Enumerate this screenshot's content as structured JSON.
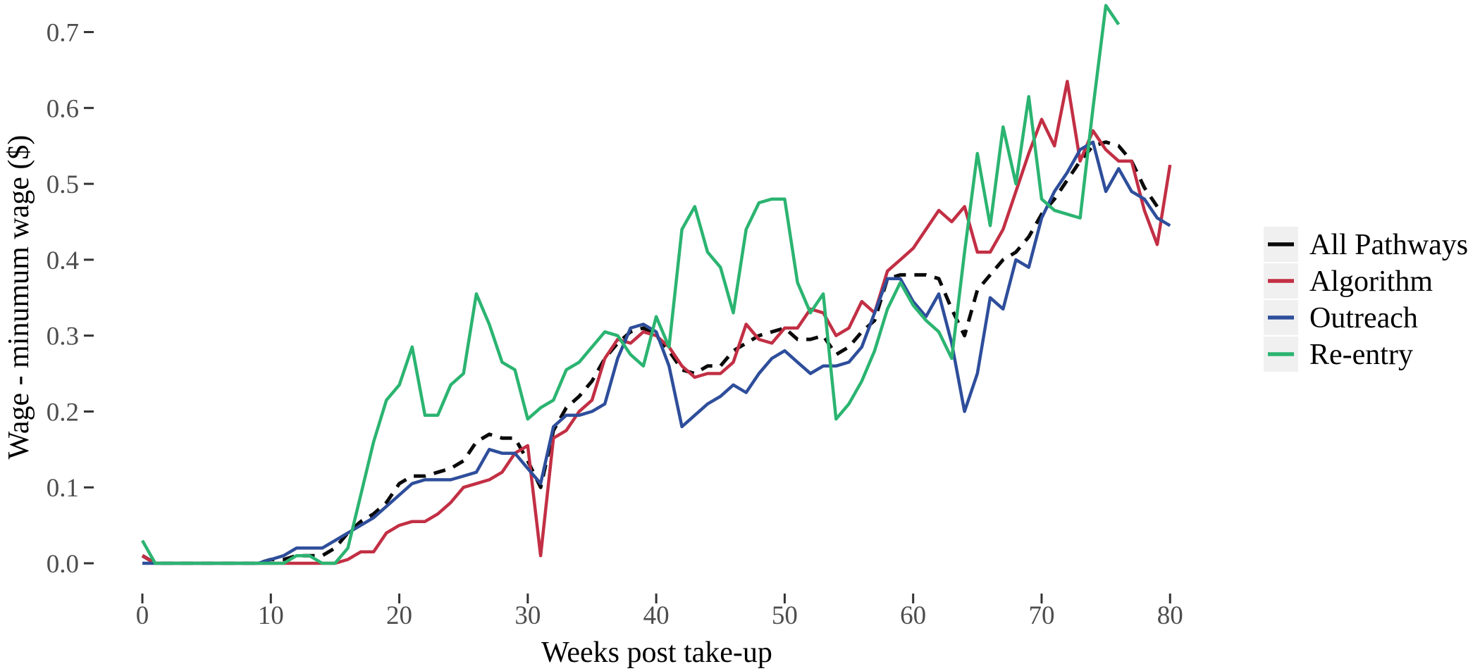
{
  "figure": {
    "background": "#FFFFFF",
    "tick_color": "#333333",
    "tick_label_color": "#4D4D4D",
    "axis_title_color": "#000000",
    "legend_key_background": "#F0F0F0",
    "legend_text_color": "#000000"
  },
  "chart_data": {
    "type": "line",
    "title": "",
    "xlabel": "Weeks post take-up",
    "ylabel": "Wage - minumum wage ($)",
    "xlim": [
      0,
      80
    ],
    "ylim": [
      0,
      0.74
    ],
    "grid": false,
    "legend_position": "right-middle",
    "x_ticks": [
      0,
      10,
      20,
      30,
      40,
      50,
      60,
      70,
      80
    ],
    "y_tick_labels": [
      "0.0",
      "0.1",
      "0.2",
      "0.3",
      "0.4",
      "0.5",
      "0.6",
      "0.7"
    ],
    "weeks": [
      0,
      1,
      2,
      3,
      4,
      5,
      6,
      7,
      8,
      9,
      10,
      11,
      12,
      13,
      14,
      15,
      16,
      17,
      18,
      19,
      20,
      21,
      22,
      23,
      24,
      25,
      26,
      27,
      28,
      29,
      30,
      31,
      32,
      33,
      34,
      35,
      36,
      37,
      38,
      39,
      40,
      41,
      42,
      43,
      44,
      45,
      46,
      47,
      48,
      49,
      50,
      51,
      52,
      53,
      54,
      55,
      56,
      57,
      58,
      59,
      60,
      61,
      62,
      63,
      64,
      65,
      66,
      67,
      68,
      69,
      70,
      71,
      72,
      73,
      74,
      75,
      76,
      77,
      78,
      79,
      80
    ],
    "series": [
      {
        "name": "All Pathways",
        "color": "#0A0A0A",
        "style": "dashed",
        "values": [
          0.01,
          0,
          0,
          0,
          0,
          0,
          0,
          0,
          0,
          0,
          0.005,
          0.005,
          0.01,
          0.01,
          0.01,
          0.02,
          0.04,
          0.055,
          0.065,
          0.08,
          0.105,
          0.115,
          0.115,
          0.12,
          0.125,
          0.135,
          0.16,
          0.17,
          0.165,
          0.165,
          0.135,
          0.1,
          0.175,
          0.205,
          0.22,
          0.24,
          0.27,
          0.29,
          0.305,
          0.31,
          0.3,
          0.28,
          0.255,
          0.25,
          0.26,
          0.26,
          0.28,
          0.29,
          0.3,
          0.305,
          0.31,
          0.295,
          0.295,
          0.3,
          0.275,
          0.285,
          0.305,
          0.32,
          0.375,
          0.38,
          0.38,
          0.38,
          0.375,
          0.335,
          0.3,
          0.36,
          0.38,
          0.4,
          0.41,
          0.43,
          0.46,
          0.48,
          0.505,
          0.53,
          0.55,
          0.555,
          0.55,
          0.53,
          0.495,
          0.47,
          null
        ]
      },
      {
        "name": "Algorithm",
        "color": "#C22F44",
        "style": "solid",
        "values": [
          0.01,
          0,
          0,
          0,
          0,
          0,
          0,
          0,
          0,
          0,
          0,
          0,
          0,
          0,
          0,
          0,
          0.005,
          0.015,
          0.015,
          0.04,
          0.05,
          0.055,
          0.055,
          0.065,
          0.08,
          0.1,
          0.105,
          0.11,
          0.12,
          0.145,
          0.155,
          0.01,
          0.165,
          0.175,
          0.2,
          0.215,
          0.27,
          0.295,
          0.29,
          0.305,
          0.3,
          0.285,
          0.26,
          0.245,
          0.25,
          0.25,
          0.265,
          0.315,
          0.295,
          0.29,
          0.31,
          0.31,
          0.335,
          0.33,
          0.3,
          0.31,
          0.345,
          0.33,
          0.385,
          0.4,
          0.415,
          0.44,
          0.465,
          0.45,
          0.47,
          0.41,
          0.41,
          0.44,
          0.49,
          0.54,
          0.585,
          0.55,
          0.635,
          0.53,
          0.57,
          0.545,
          0.53,
          0.53,
          0.465,
          0.42,
          0.525
        ]
      },
      {
        "name": "Outreach",
        "color": "#2E4E9B",
        "style": "solid",
        "values": [
          0,
          0,
          0,
          0,
          0,
          0,
          0,
          0,
          0,
          0,
          0.005,
          0.01,
          0.02,
          0.02,
          0.02,
          0.03,
          0.04,
          0.05,
          0.06,
          0.075,
          0.09,
          0.105,
          0.11,
          0.11,
          0.11,
          0.115,
          0.12,
          0.15,
          0.145,
          0.145,
          0.125,
          0.105,
          0.18,
          0.195,
          0.195,
          0.2,
          0.21,
          0.27,
          0.31,
          0.315,
          0.305,
          0.26,
          0.18,
          0.195,
          0.21,
          0.22,
          0.235,
          0.225,
          0.25,
          0.27,
          0.28,
          0.265,
          0.25,
          0.26,
          0.26,
          0.265,
          0.285,
          0.33,
          0.375,
          0.375,
          0.345,
          0.325,
          0.355,
          0.29,
          0.2,
          0.25,
          0.35,
          0.335,
          0.4,
          0.39,
          0.455,
          0.49,
          0.515,
          0.545,
          0.555,
          0.49,
          0.52,
          0.49,
          0.48,
          0.455,
          0.445
        ]
      },
      {
        "name": "Re-entry",
        "color": "#2BB471",
        "style": "solid",
        "values": [
          0.03,
          0,
          0,
          0,
          0,
          0,
          0,
          0,
          0,
          0,
          0,
          0,
          0.01,
          0.01,
          0,
          0,
          0.02,
          0.09,
          0.16,
          0.215,
          0.235,
          0.285,
          0.195,
          0.195,
          0.235,
          0.25,
          0.355,
          0.315,
          0.265,
          0.255,
          0.19,
          0.205,
          0.215,
          0.255,
          0.265,
          0.285,
          0.305,
          0.3,
          0.275,
          0.26,
          0.325,
          0.285,
          0.44,
          0.47,
          0.41,
          0.39,
          0.33,
          0.44,
          0.475,
          0.48,
          0.48,
          0.37,
          0.33,
          0.355,
          0.19,
          0.21,
          0.24,
          0.28,
          0.335,
          0.37,
          0.34,
          0.32,
          0.305,
          0.27,
          0.41,
          0.54,
          0.445,
          0.575,
          0.5,
          0.615,
          0.48,
          0.465,
          0.46,
          0.455,
          0.6,
          0.735,
          0.71,
          null,
          null,
          null,
          null
        ]
      }
    ]
  }
}
